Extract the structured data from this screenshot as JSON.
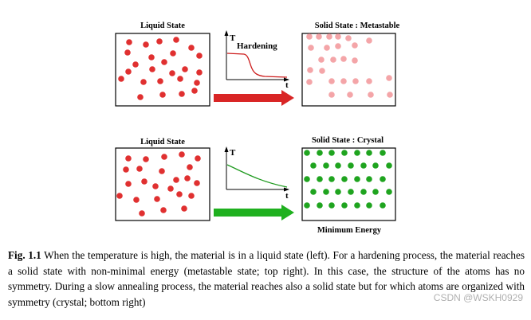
{
  "colors": {
    "liquid_dot": "#e03030",
    "metastable_dot": "#f4a5a8",
    "crystal_dot": "#1fa41f",
    "red_arrow": "#d92525",
    "green_arrow": "#1fb01f",
    "red_curve": "#cc1a1a",
    "green_curve": "#1f9a1f"
  },
  "top_row": {
    "left_label": "Liquid State",
    "right_label": "Solid State : Metastable",
    "graph_y_label": "T",
    "graph_x_label": "t",
    "graph_annotation": "Hardening"
  },
  "bottom_row": {
    "left_label": "Liquid State",
    "right_label": "Solid State : Crystal",
    "graph_y_label": "T",
    "graph_x_label": "t",
    "bottom_label": "Minimum Energy"
  },
  "caption": {
    "fig_label": "Fig. 1.1",
    "text": " When the temperature is high, the material is in a liquid state (left). For a hardening process, the material reaches a solid state with non-minimal energy (metastable state; top right). In this case, the structure of the atoms has no symmetry. During a slow annealing process, the material reaches also a solid state but for which atoms are organized with symmetry (crystal; bottom right)"
  },
  "watermark": "CSDN @WSKH0929"
}
